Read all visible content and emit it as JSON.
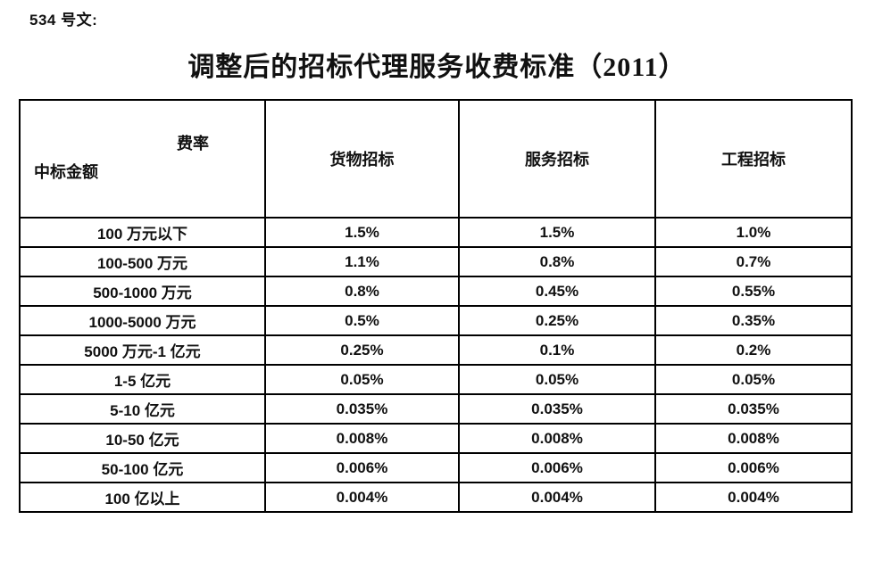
{
  "doc_label": "534 号文:",
  "title": "调整后的招标代理服务收费标准（2011）",
  "table": {
    "corner_top_right": "费率",
    "corner_bottom_left": "中标金额",
    "columns": [
      "货物招标",
      "服务招标",
      "工程招标"
    ],
    "rows": [
      {
        "label": "100 万元以下",
        "values": [
          "1.5%",
          "1.5%",
          "1.0%"
        ]
      },
      {
        "label": "100-500 万元",
        "values": [
          "1.1%",
          "0.8%",
          "0.7%"
        ]
      },
      {
        "label": "500-1000 万元",
        "values": [
          "0.8%",
          "0.45%",
          "0.55%"
        ]
      },
      {
        "label": "1000-5000 万元",
        "values": [
          "0.5%",
          "0.25%",
          "0.35%"
        ]
      },
      {
        "label": "5000 万元-1 亿元",
        "values": [
          "0.25%",
          "0.1%",
          "0.2%"
        ]
      },
      {
        "label": "1-5 亿元",
        "values": [
          "0.05%",
          "0.05%",
          "0.05%"
        ]
      },
      {
        "label": "5-10 亿元",
        "values": [
          "0.035%",
          "0.035%",
          "0.035%"
        ]
      },
      {
        "label": "10-50 亿元",
        "values": [
          "0.008%",
          "0.008%",
          "0.008%"
        ]
      },
      {
        "label": "50-100 亿元",
        "values": [
          "0.006%",
          "0.006%",
          "0.006%"
        ]
      },
      {
        "label": "100 亿以上",
        "values": [
          "0.004%",
          "0.004%",
          "0.004%"
        ]
      }
    ]
  },
  "colors": {
    "background": "#ffffff",
    "text": "#111111",
    "border": "#000000"
  }
}
